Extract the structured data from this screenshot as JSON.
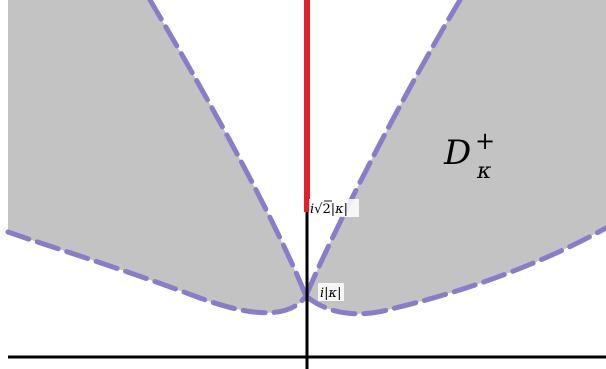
{
  "diagram": {
    "region_label": {
      "base": "D",
      "superscript": "+",
      "subscript": "κ"
    },
    "point_upper": {
      "prefix": "i",
      "radical": "√",
      "radicand": "2",
      "abs": "|κ|"
    },
    "point_lower": {
      "prefix": "i",
      "abs": "|κ|"
    },
    "colors": {
      "region_fill": "#c3c3c3",
      "boundary": "#8a7cc9",
      "cut": "#e0202a",
      "axes": "#000000",
      "background": "#ffffff"
    }
  }
}
